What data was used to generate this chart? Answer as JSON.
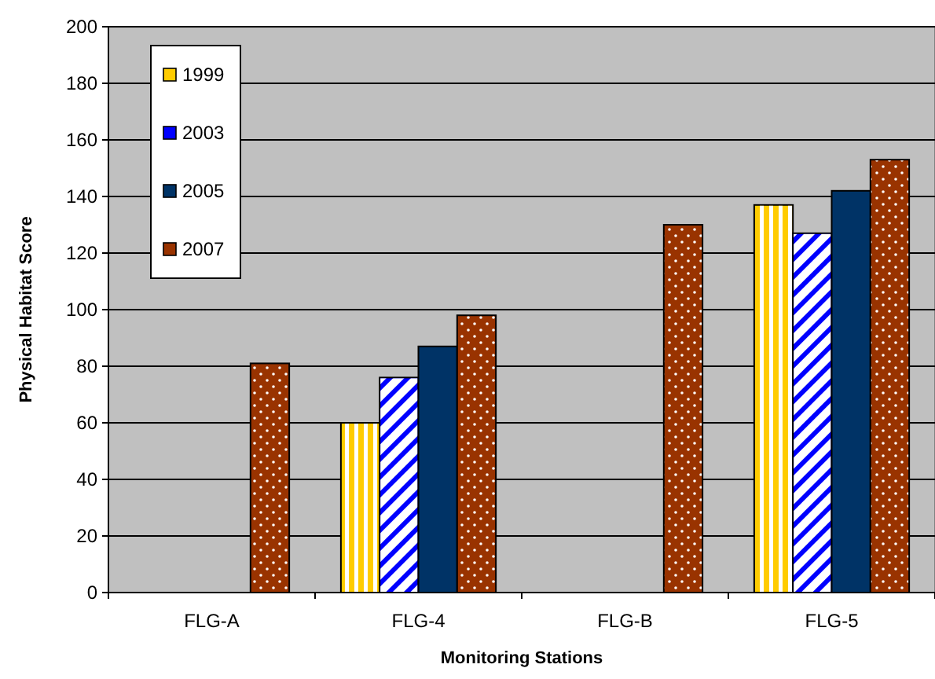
{
  "chart_data": {
    "type": "bar",
    "xlabel": "Monitoring Stations",
    "ylabel": "Physical Habitat Score",
    "categories": [
      "FLG-A",
      "FLG-4",
      "FLG-B",
      "FLG-5"
    ],
    "series": [
      {
        "name": "1999",
        "color": "#ffcc00",
        "values": [
          null,
          60,
          null,
          137
        ]
      },
      {
        "name": "2003",
        "color": "#0000ff",
        "values": [
          null,
          76,
          null,
          127
        ]
      },
      {
        "name": "2005",
        "color": "#003366",
        "values": [
          null,
          87,
          null,
          142
        ]
      },
      {
        "name": "2007",
        "color": "#993300",
        "values": [
          81,
          98,
          130,
          153
        ]
      }
    ],
    "ylim": [
      0,
      200
    ],
    "yticks": [
      0,
      20,
      40,
      60,
      80,
      100,
      120,
      140,
      160,
      180,
      200
    ],
    "grid": "y",
    "legend": "top left"
  }
}
